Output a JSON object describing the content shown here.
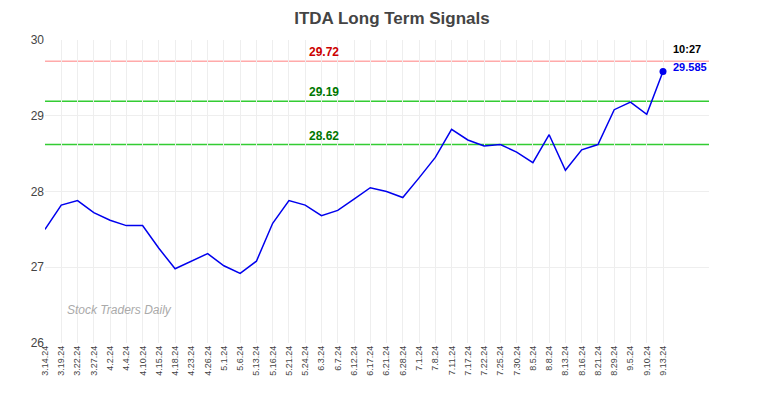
{
  "chart_data": {
    "type": "line",
    "title": "ITDA Long Term Signals",
    "categories": [
      "3.14.24",
      "3.19.24",
      "3.22.24",
      "3.27.24",
      "4.2.24",
      "4.4.24",
      "4.10.24",
      "4.15.24",
      "4.18.24",
      "4.23.24",
      "4.26.24",
      "5.1.24",
      "5.6.24",
      "5.13.24",
      "5.16.24",
      "5.21.24",
      "5.24.24",
      "6.3.24",
      "6.7.24",
      "6.12.24",
      "6.17.24",
      "6.21.24",
      "6.28.24",
      "7.1.24",
      "7.8.24",
      "7.11.24",
      "7.17.24",
      "7.22.24",
      "7.25.24",
      "7.30.24",
      "8.5.24",
      "8.8.24",
      "8.13.24",
      "8.16.24",
      "8.21.24",
      "8.29.24",
      "9.5.24",
      "9.10.24",
      "9.13.24"
    ],
    "values": [
      27.5,
      27.82,
      27.88,
      27.72,
      27.62,
      27.55,
      27.55,
      27.25,
      26.98,
      27.08,
      27.18,
      27.02,
      26.92,
      27.08,
      27.58,
      27.88,
      27.82,
      27.68,
      27.75,
      27.9,
      28.05,
      28.0,
      27.92,
      28.18,
      28.45,
      28.82,
      28.68,
      28.6,
      28.62,
      28.52,
      28.38,
      28.75,
      28.28,
      28.55,
      28.62,
      29.08,
      29.18,
      29.02,
      29.585
    ],
    "color": "#0000ee",
    "hlines": [
      {
        "value": 29.72,
        "label": "29.72",
        "color": "#ffaaaa",
        "label_color": "#cc0000"
      },
      {
        "value": 29.19,
        "label": "29.19",
        "color": "#33cc33",
        "label_color": "#007700"
      },
      {
        "value": 28.62,
        "label": "28.62",
        "color": "#33cc33",
        "label_color": "#007700"
      }
    ],
    "annotations": [
      {
        "text": "10:27",
        "category": "9.13.24",
        "color": "#000000"
      },
      {
        "text": "29.585",
        "category": "9.13.24",
        "color": "#0000ee"
      }
    ],
    "watermark": "Stock Traders Daily",
    "ylim": [
      26,
      30
    ],
    "yticks": [
      26,
      27,
      28,
      29,
      30
    ],
    "grid": true
  }
}
